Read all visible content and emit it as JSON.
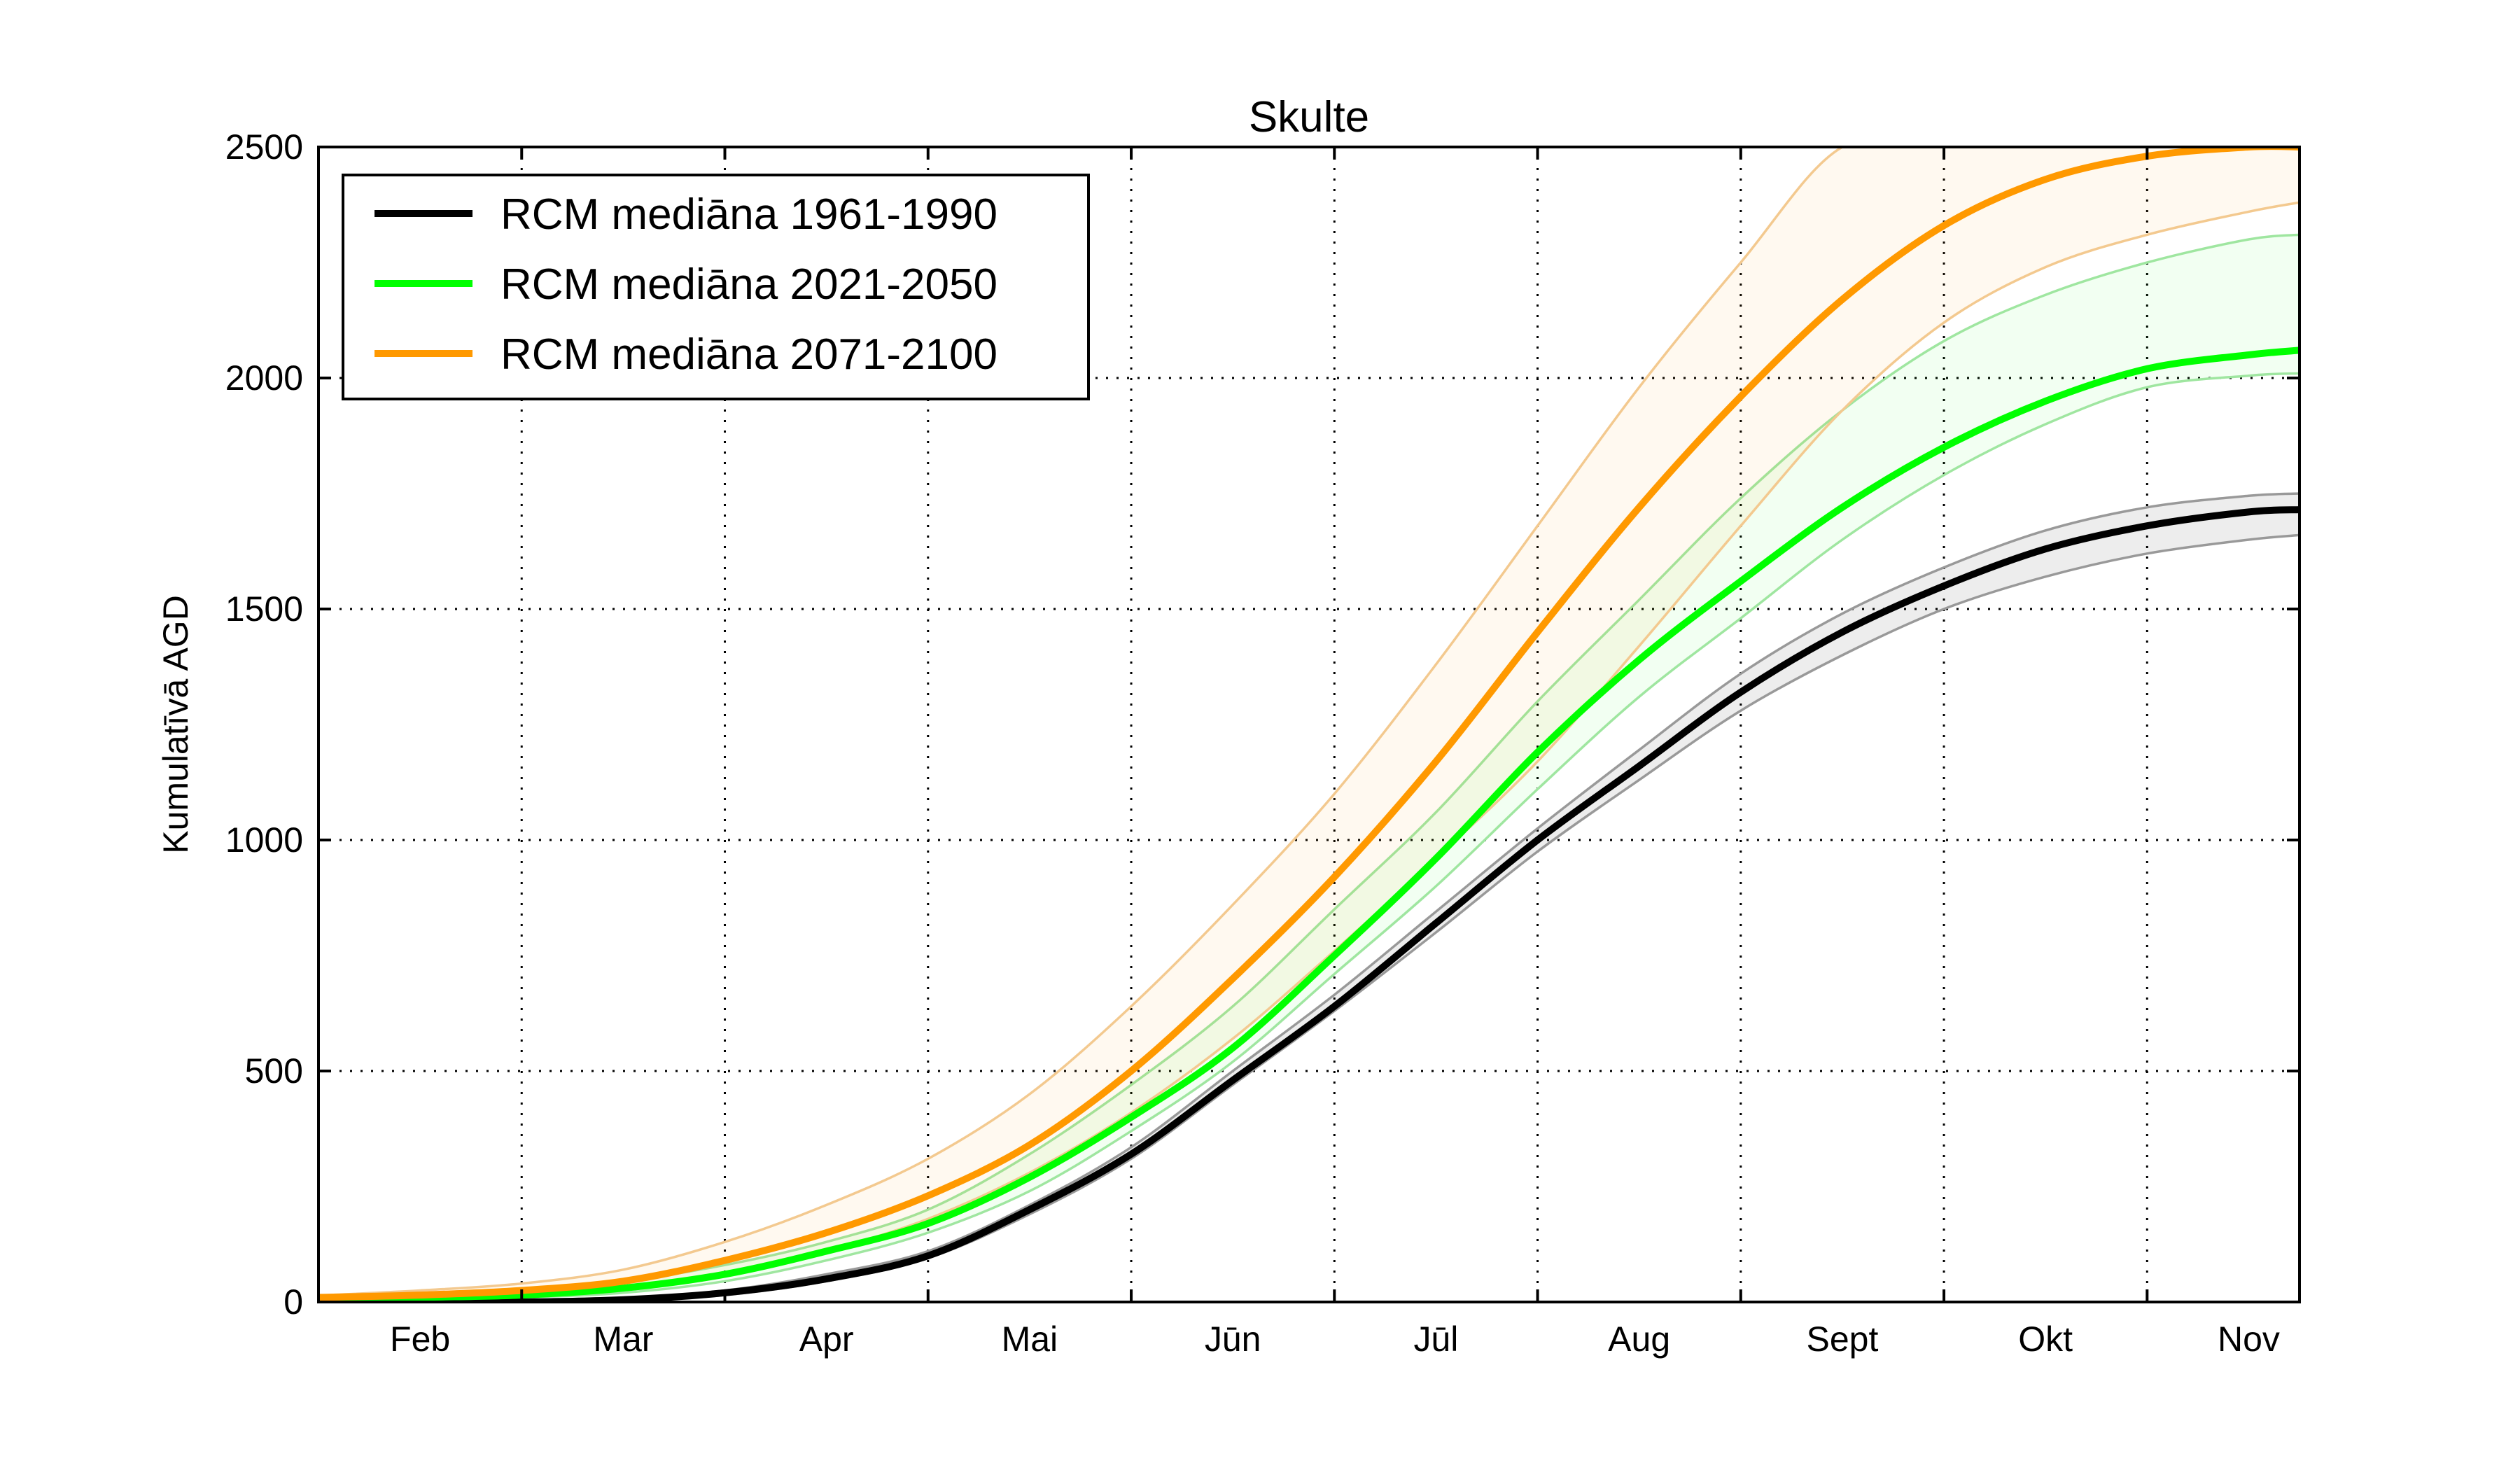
{
  "chart_data": {
    "type": "line",
    "title": "Skulte",
    "ylabel": "Kumulatīvā AGD",
    "xlabel": "",
    "x_categories": [
      "Feb",
      "Mar",
      "Apr",
      "Mai",
      "Jūn",
      "Jūl",
      "Aug",
      "Sept",
      "Okt",
      "Nov"
    ],
    "x_range_months": [
      0,
      9.75
    ],
    "ylim": [
      0,
      2500
    ],
    "yticks": [
      0,
      500,
      1000,
      1500,
      2000,
      2500
    ],
    "grid": true,
    "legend_position": "top-left",
    "x": [
      0,
      0.5,
      1,
      1.5,
      2,
      2.5,
      3,
      3.5,
      4,
      4.5,
      5,
      5.5,
      6,
      6.5,
      7,
      7.5,
      8,
      8.5,
      9,
      9.5,
      9.75
    ],
    "series": [
      {
        "name": "RCM mediāna 1961-1990",
        "color": "#000000",
        "median": [
          0,
          0,
          0,
          5,
          20,
          50,
          100,
          200,
          320,
          480,
          640,
          820,
          1000,
          1160,
          1320,
          1450,
          1550,
          1630,
          1680,
          1710,
          1715
        ],
        "lower": [
          0,
          0,
          0,
          3,
          15,
          45,
          95,
          190,
          310,
          470,
          630,
          800,
          975,
          1130,
          1280,
          1400,
          1500,
          1570,
          1620,
          1650,
          1660
        ],
        "upper": [
          0,
          0,
          0,
          8,
          25,
          60,
          110,
          210,
          335,
          500,
          665,
          845,
          1025,
          1195,
          1360,
          1490,
          1590,
          1670,
          1720,
          1745,
          1750
        ]
      },
      {
        "name": "RCM mediāna 2021-2050",
        "color": "#00ff00",
        "median": [
          5,
          10,
          15,
          30,
          60,
          110,
          170,
          270,
          400,
          550,
          750,
          960,
          1190,
          1390,
          1560,
          1720,
          1850,
          1950,
          2020,
          2050,
          2060
        ],
        "lower": [
          3,
          7,
          10,
          20,
          45,
          90,
          150,
          240,
          370,
          520,
          710,
          900,
          1110,
          1310,
          1480,
          1650,
          1790,
          1900,
          1980,
          2005,
          2010
        ],
        "upper": [
          8,
          15,
          25,
          45,
          80,
          130,
          200,
          320,
          470,
          640,
          850,
          1060,
          1300,
          1520,
          1740,
          1930,
          2080,
          2180,
          2250,
          2300,
          2310
        ]
      },
      {
        "name": "RCM mediāna 2071-2100",
        "color": "#ff9900",
        "median": [
          10,
          15,
          25,
          45,
          90,
          150,
          230,
          340,
          500,
          700,
          920,
          1170,
          1450,
          1720,
          1960,
          2170,
          2330,
          2430,
          2480,
          2500,
          2500
        ],
        "lower": [
          6,
          10,
          18,
          30,
          60,
          110,
          180,
          280,
          410,
          570,
          760,
          960,
          1170,
          1420,
          1680,
          1930,
          2120,
          2240,
          2310,
          2360,
          2380
        ],
        "upper": [
          14,
          25,
          40,
          70,
          130,
          210,
          310,
          450,
          640,
          860,
          1100,
          1380,
          1680,
          1980,
          2250,
          2500,
          2500,
          2500,
          2500,
          2500,
          2500
        ]
      }
    ]
  }
}
